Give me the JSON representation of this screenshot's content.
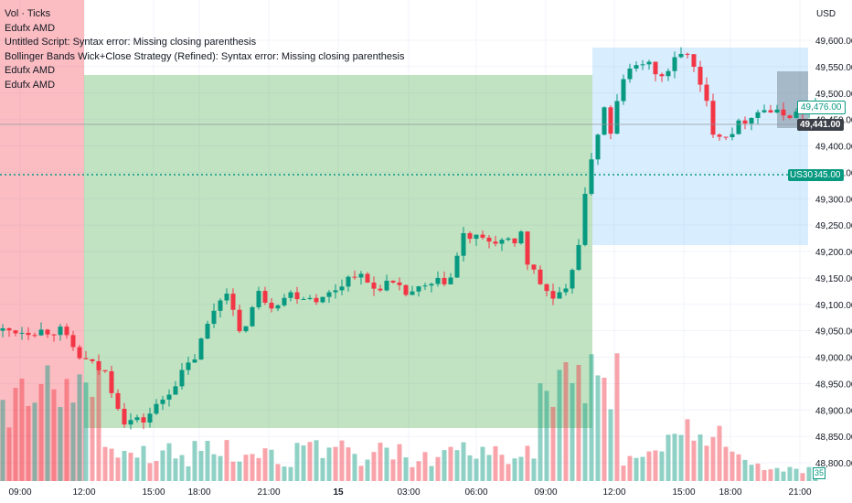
{
  "legend": {
    "line1": "Vol · Ticks",
    "line2": "Edufx AMD",
    "line3": "Untitled Script: Syntax error: Missing closing parenthesis",
    "line4": "Bollinger Bands Wick+Close Strategy (Refined): Syntax error: Missing closing parenthesis",
    "line5": "Edufx AMD",
    "line6": "Edufx AMD"
  },
  "price_axis": {
    "currency": "USD",
    "labels": [
      "49,600.00",
      "49,550.00",
      "49,500.00",
      "49,450.00",
      "49,400.00",
      "49,350.00",
      "49,300.00",
      "49,250.00",
      "49,200.00",
      "49,150.00",
      "49,100.00",
      "49,050.00",
      "49,000.00",
      "48,950.00",
      "48,900.00",
      "48,850.00",
      "48,800.00"
    ]
  },
  "time_axis": {
    "labels": [
      "09:00",
      "12:00",
      "15:00",
      "18:00",
      "21:00",
      "15",
      "03:00",
      "06:00",
      "09:00",
      "12:00",
      "15:00",
      "18:00",
      "21:00"
    ]
  },
  "tags": {
    "last_outline": "49,476.00",
    "crosshair_price": "49,441.00",
    "symbol": "US30",
    "symbol_price": "49,345.00",
    "volume_badge": "35"
  },
  "colors": {
    "up": "#089981",
    "down": "#f23645",
    "distribution_zone": "#f23645",
    "accumulation_zone": "#4caf50",
    "manipulation_zone": "#90caf9"
  },
  "chart_data": {
    "type": "candlestick",
    "symbol": "US30",
    "price_range": [
      48790,
      49630
    ],
    "keypoints": [
      [
        0,
        49050
      ],
      [
        9,
        49050
      ],
      [
        12,
        49000
      ],
      [
        16,
        48970
      ],
      [
        19,
        48880
      ],
      [
        22,
        48880
      ],
      [
        25,
        48920
      ],
      [
        30,
        49000
      ],
      [
        33,
        49090
      ],
      [
        35,
        49130
      ],
      [
        37,
        49040
      ],
      [
        40,
        49120
      ],
      [
        42,
        49100
      ],
      [
        45,
        49120
      ],
      [
        50,
        49110
      ],
      [
        55,
        49160
      ],
      [
        58,
        49130
      ],
      [
        60,
        49140
      ],
      [
        63,
        49120
      ],
      [
        66,
        49130
      ],
      [
        70,
        49150
      ],
      [
        72,
        49230
      ],
      [
        75,
        49220
      ],
      [
        78,
        49220
      ],
      [
        80,
        49210
      ],
      [
        81,
        49240
      ],
      [
        82,
        49180
      ],
      [
        84,
        49140
      ],
      [
        86,
        49110
      ],
      [
        88,
        49120
      ],
      [
        90,
        49220
      ],
      [
        92,
        49380
      ],
      [
        94,
        49470
      ],
      [
        95,
        49420
      ],
      [
        96,
        49480
      ],
      [
        97,
        49530
      ],
      [
        100,
        49560
      ],
      [
        103,
        49530
      ],
      [
        105,
        49560
      ],
      [
        107,
        49580
      ],
      [
        109,
        49510
      ],
      [
        110,
        49480
      ],
      [
        111,
        49430
      ],
      [
        113,
        49420
      ],
      [
        115,
        49440
      ],
      [
        117,
        49460
      ],
      [
        119,
        49470
      ],
      [
        121,
        49460
      ],
      [
        123,
        49460
      ],
      [
        126,
        49465
      ],
      [
        127,
        49470
      ]
    ],
    "volume_range": [
      0,
      200
    ]
  }
}
